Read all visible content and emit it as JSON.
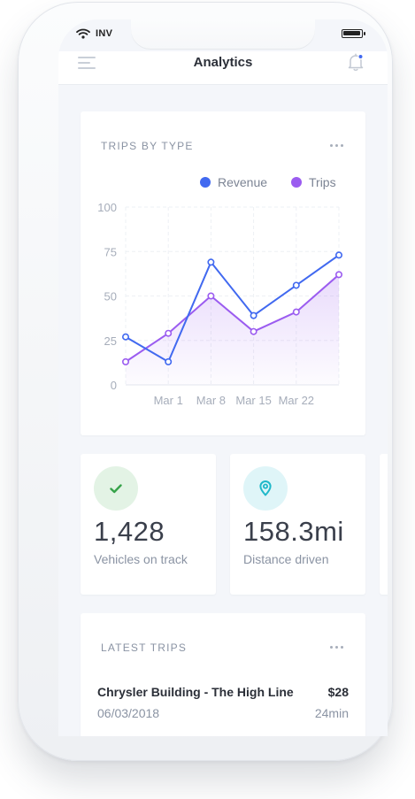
{
  "status_bar": {
    "carrier": "INV",
    "battery_level": 1.0
  },
  "header": {
    "title": "Analytics",
    "menu_icon": "menu-icon",
    "notification_icon": "bell-icon"
  },
  "colors": {
    "revenue": "#4169f0",
    "trips": "#9b5cf0",
    "check_bg": "#e3f3e5",
    "check_fg": "#37a34a",
    "pin_bg": "#dff5f8",
    "pin_fg": "#1fb8c9"
  },
  "trips_chart": {
    "title": "TRIPS BY TYPE",
    "more_icon": "more-horizontal-icon"
  },
  "chart_data": {
    "type": "line",
    "title": "TRIPS BY TYPE",
    "xlabel": "",
    "ylabel": "",
    "x": [
      0,
      1,
      2,
      3,
      4,
      5
    ],
    "x_tick_labels": [
      "Mar 1",
      "Mar 8",
      "Mar 15",
      "Mar 22"
    ],
    "ylim": [
      0,
      100
    ],
    "y_ticks": [
      0,
      25,
      50,
      75,
      100
    ],
    "grid": true,
    "legend": "top-right",
    "series": [
      {
        "name": "Revenue",
        "color": "#4169f0",
        "values": [
          27,
          13,
          69,
          39,
          56,
          73
        ]
      },
      {
        "name": "Trips",
        "color": "#9b5cf0",
        "values": [
          13,
          29,
          50,
          30,
          41,
          62
        ],
        "area_fill": true
      }
    ]
  },
  "stats": [
    {
      "icon": "check-icon",
      "value": "1,428",
      "label": "Vehicles on track"
    },
    {
      "icon": "map-pin-icon",
      "value": "158.3mi",
      "label": "Distance driven"
    }
  ],
  "latest_trips": {
    "title": "LATEST TRIPS",
    "more_icon": "more-horizontal-icon",
    "items": [
      {
        "place": "Chrysler Building - The High Line",
        "price": "$28",
        "date": "06/03/2018",
        "duration": "24min"
      }
    ]
  }
}
